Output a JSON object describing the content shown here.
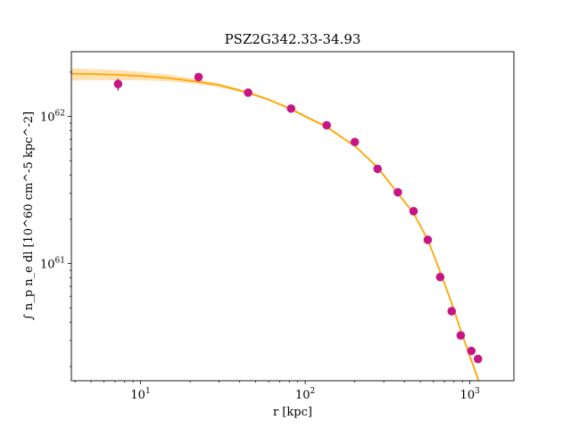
{
  "chart_data": {
    "type": "scatter",
    "title": "PSZ2G342.33-34.93",
    "xlabel": "r [kpc]",
    "ylabel": "∫ n_p n_e dl [10^60 cm^-5 kpc^-2]",
    "xscale": "log",
    "yscale": "log",
    "xlim": [
      3.8,
      1850
    ],
    "ylim": [
      1.6e+60,
      2.75e+62
    ],
    "grid": false,
    "x_ticks": [
      {
        "label": "10",
        "exp": "1",
        "value": 10
      },
      {
        "label": "10",
        "exp": "2",
        "value": 100
      },
      {
        "label": "10",
        "exp": "3",
        "value": 1000
      }
    ],
    "y_ticks": [
      {
        "label": "10",
        "exp": "61",
        "value": 1e+61
      },
      {
        "label": "10",
        "exp": "62",
        "value": 1e+62
      }
    ],
    "colors": {
      "points": "#c71585",
      "model": "#ffa500",
      "band": "#ffd9a0"
    },
    "series": [
      {
        "kind": "points",
        "x": [
          7.3,
          22.5,
          45,
          82,
          135,
          200,
          275,
          365,
          455,
          555,
          660,
          775,
          880,
          1020,
          1120
        ],
        "y": [
          1.66e+62,
          1.85e+62,
          1.45e+62,
          1.13e+62,
          8.7e+61,
          6.7e+61,
          4.4e+61,
          3.05e+61,
          2.27e+61,
          1.45e+61,
          8.1e+60,
          4.75e+60,
          3.25e+60,
          2.55e+60,
          2.25e+60
        ],
        "yerr_low": [
          1.6e+61,
          0,
          0,
          0,
          0,
          0,
          0,
          0,
          0,
          0,
          0,
          0,
          0,
          0,
          0
        ],
        "yerr_high": [
          1.4e+61,
          0,
          0,
          0,
          0,
          0,
          0,
          0,
          0,
          0,
          0,
          0,
          0,
          0,
          0
        ]
      },
      {
        "kind": "model",
        "x": [
          3.8,
          5,
          7,
          10,
          15,
          22,
          30,
          45,
          60,
          82,
          100,
          135,
          170,
          200,
          275,
          365,
          455,
          555,
          660,
          775,
          880,
          1020,
          1120,
          1200
        ],
        "y": [
          1.95e+62,
          1.94e+62,
          1.92e+62,
          1.88e+62,
          1.82e+62,
          1.72e+62,
          1.63e+62,
          1.45e+62,
          1.3e+62,
          1.12e+62,
          1e+62,
          8.5e+61,
          7.1e+61,
          6.3e+61,
          4.5e+61,
          3e+61,
          2.2e+61,
          1.45e+61,
          8.8e+60,
          5.4e+60,
          3.5e+60,
          2.2e+60,
          1.65e+60,
          1.3e+60
        ],
        "band_low": [
          1.75e+62,
          1.76e+62,
          1.76e+62,
          1.76e+62,
          1.73e+62,
          1.66e+62,
          1.58e+62,
          1.42e+62,
          1.28e+62,
          1.1e+62,
          9.8e+61,
          8.35e+61,
          7e+61,
          6.2e+61,
          4.42e+61,
          2.95e+61,
          2.16e+61,
          1.42e+61,
          8.6e+60,
          5.25e+60,
          3.4e+60,
          2.13e+60,
          1.6e+60,
          1.25e+60
        ],
        "band_high": [
          2.12e+62,
          2.1e+62,
          2.07e+62,
          2.01e+62,
          1.92e+62,
          1.79e+62,
          1.68e+62,
          1.48e+62,
          1.32e+62,
          1.14e+62,
          1.02e+62,
          8.65e+61,
          7.2e+61,
          6.4e+61,
          4.58e+61,
          3.05e+61,
          2.24e+61,
          1.48e+61,
          9e+60,
          5.55e+60,
          3.6e+60,
          2.27e+60,
          1.7e+60,
          1.35e+60
        ]
      }
    ]
  }
}
